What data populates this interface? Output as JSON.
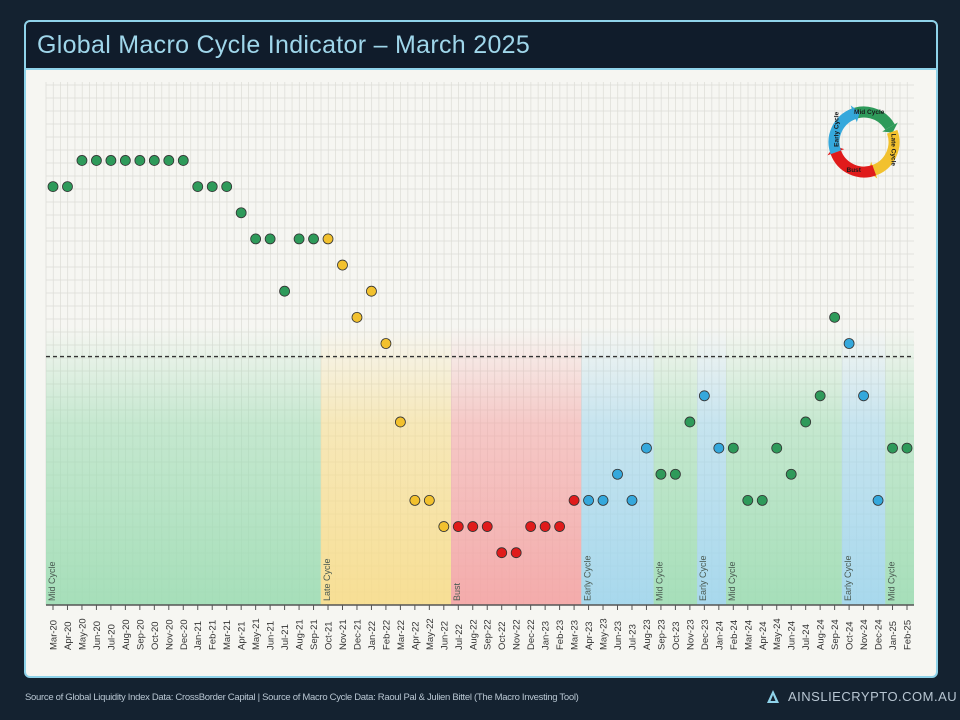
{
  "header": {
    "title": "Global Macro Cycle Indicator – March 2025"
  },
  "footer": {
    "source": "Source of Global Liquidity Index Data: CrossBorder Capital | Source of Macro Cycle Data: Raoul Pal & Julien Bittel (The Macro Investing Tool)",
    "brand": "AINSLIECRYPTO.COM.AU"
  },
  "legend_wheel": {
    "labels": [
      "Mid Cycle",
      "Late Cycle",
      "Bust",
      "Early Cycle"
    ]
  },
  "chart_data": {
    "type": "scatter",
    "title": "",
    "xlabel": "",
    "ylabel": "",
    "y_axis_labels_shown": false,
    "grid": true,
    "threshold_line": {
      "y": 0,
      "style": "dashed"
    },
    "phase_colors": {
      "Mid Cycle": "#2e9a5a",
      "Late Cycle": "#f2c12e",
      "Bust": "#e01b1b",
      "Early Cycle": "#35a8dc"
    },
    "band_colors": {
      "Mid Cycle": "#9ddcb3",
      "Late Cycle": "#f7dc8a",
      "Bust": "#f4a3a3",
      "Early Cycle": "#9fd5ec"
    },
    "categories": [
      "Mar-20",
      "Apr-20",
      "May-20",
      "Jun-20",
      "Jul-20",
      "Aug-20",
      "Sep-20",
      "Oct-20",
      "Nov-20",
      "Dec-20",
      "Jan-21",
      "Feb-21",
      "Mar-21",
      "Apr-21",
      "May-21",
      "Jun-21",
      "Jul-21",
      "Aug-21",
      "Sep-21",
      "Oct-21",
      "Nov-21",
      "Dec-21",
      "Jan-22",
      "Feb-22",
      "Mar-22",
      "Apr-22",
      "May-22",
      "Jun-22",
      "Jul-22",
      "Aug-22",
      "Sep-22",
      "Oct-22",
      "Nov-22",
      "Dec-22",
      "Jan-23",
      "Feb-23",
      "Mar-23",
      "Apr-23",
      "May-23",
      "Jun-23",
      "Jul-23",
      "Aug-23",
      "Sep-23",
      "Oct-23",
      "Nov-23",
      "Dec-23",
      "Jan-24",
      "Feb-24",
      "Mar-24",
      "Apr-24",
      "May-24",
      "Jun-24",
      "Jul-24",
      "Aug-24",
      "Sep-24",
      "Oct-24",
      "Nov-24",
      "Dec-24",
      "Jan-25",
      "Feb-25"
    ],
    "values": [
      6.5,
      6.5,
      7.5,
      7.5,
      7.5,
      7.5,
      7.5,
      7.5,
      7.5,
      7.5,
      6.5,
      6.5,
      6.5,
      5.5,
      4.5,
      4.5,
      2.5,
      4.5,
      4.5,
      4.5,
      3.5,
      1.5,
      2.5,
      0.5,
      -2.5,
      -5.5,
      -5.5,
      -6.5,
      -6.5,
      -6.5,
      -6.5,
      -7.5,
      -7.5,
      -6.5,
      -6.5,
      -6.5,
      -5.5,
      -5.5,
      -5.5,
      -4.5,
      -5.5,
      -3.5,
      -4.5,
      -4.5,
      -2.5,
      -1.5,
      -3.5,
      -3.5,
      -5.5,
      -5.5,
      -3.5,
      -4.5,
      -2.5,
      -1.5,
      1.5,
      0.5,
      -1.5,
      -5.5,
      -3.5,
      -3.5
    ],
    "point_phase": [
      "Mid Cycle",
      "Mid Cycle",
      "Mid Cycle",
      "Mid Cycle",
      "Mid Cycle",
      "Mid Cycle",
      "Mid Cycle",
      "Mid Cycle",
      "Mid Cycle",
      "Mid Cycle",
      "Mid Cycle",
      "Mid Cycle",
      "Mid Cycle",
      "Mid Cycle",
      "Mid Cycle",
      "Mid Cycle",
      "Mid Cycle",
      "Mid Cycle",
      "Mid Cycle",
      "Late Cycle",
      "Late Cycle",
      "Late Cycle",
      "Late Cycle",
      "Late Cycle",
      "Late Cycle",
      "Late Cycle",
      "Late Cycle",
      "Late Cycle",
      "Bust",
      "Bust",
      "Bust",
      "Bust",
      "Bust",
      "Bust",
      "Bust",
      "Bust",
      "Bust",
      "Early Cycle",
      "Early Cycle",
      "Early Cycle",
      "Early Cycle",
      "Early Cycle",
      "Mid Cycle",
      "Mid Cycle",
      "Mid Cycle",
      "Early Cycle",
      "Early Cycle",
      "Mid Cycle",
      "Mid Cycle",
      "Mid Cycle",
      "Mid Cycle",
      "Mid Cycle",
      "Mid Cycle",
      "Mid Cycle",
      "Mid Cycle",
      "Early Cycle",
      "Early Cycle",
      "Early Cycle",
      "Mid Cycle",
      "Mid Cycle"
    ],
    "phases": [
      {
        "label": "Mid Cycle",
        "start": "Mar-20",
        "end": "Sep-21"
      },
      {
        "label": "Late Cycle",
        "start": "Oct-21",
        "end": "Jun-22"
      },
      {
        "label": "Bust",
        "start": "Jul-22",
        "end": "Mar-23"
      },
      {
        "label": "Early Cycle",
        "start": "Apr-23",
        "end": "Aug-23"
      },
      {
        "label": "Mid Cycle",
        "start": "Sep-23",
        "end": "Nov-23"
      },
      {
        "label": "Early Cycle",
        "start": "Dec-23",
        "end": "Jan-24"
      },
      {
        "label": "Mid Cycle",
        "start": "Feb-24",
        "end": "Sep-24"
      },
      {
        "label": "Early Cycle",
        "start": "Oct-24",
        "end": "Dec-24"
      },
      {
        "label": "Mid Cycle",
        "start": "Jan-25",
        "end": "Feb-25"
      }
    ],
    "ylim": [
      -9.5,
      10.5
    ]
  }
}
